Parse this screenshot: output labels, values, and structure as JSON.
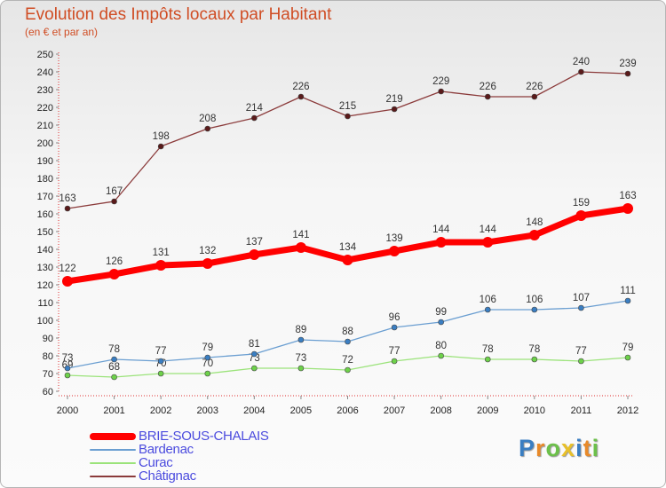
{
  "header": {
    "title": "Evolution des Impôts locaux par Habitant",
    "subtitle": "(en € et par an)"
  },
  "chart_data": {
    "type": "line",
    "x": [
      "2000",
      "2001",
      "2002",
      "2003",
      "2004",
      "2005",
      "2006",
      "2007",
      "2008",
      "2009",
      "2010",
      "2011",
      "2012"
    ],
    "ylim": [
      60,
      250
    ],
    "ytick_step": 10,
    "grid": false,
    "legend_position": "bottom-left",
    "series": [
      {
        "name": "BRIE-SOUS-CHALAIS",
        "color": "#ff0000",
        "point_color": "#ff0000",
        "width": 7,
        "radius": 6,
        "values": [
          122,
          126,
          131,
          132,
          137,
          141,
          134,
          139,
          144,
          144,
          148,
          159,
          163
        ]
      },
      {
        "name": "Bardenac",
        "color": "#6a9ed1",
        "point_color": "#3a7ec2",
        "width": 1.3,
        "radius": 3,
        "values": [
          73,
          78,
          77,
          79,
          81,
          89,
          88,
          96,
          99,
          106,
          106,
          107,
          111
        ]
      },
      {
        "name": "Curac",
        "color": "#9be37a",
        "point_color": "#6dd14a",
        "width": 1.3,
        "radius": 3,
        "values": [
          69,
          68,
          70,
          70,
          73,
          73,
          72,
          77,
          80,
          78,
          78,
          77,
          79
        ]
      },
      {
        "name": "Châtignac",
        "color": "#8b3b3b",
        "point_color": "#5a1a1a",
        "width": 1.3,
        "radius": 3,
        "values": [
          163,
          167,
          198,
          208,
          214,
          226,
          215,
          219,
          229,
          226,
          226,
          240,
          239
        ]
      }
    ]
  },
  "logo": {
    "letters": [
      "P",
      "r",
      "o",
      "x",
      "i",
      "t",
      "i"
    ],
    "colors": [
      "#3a7ec2",
      "#e88a2a",
      "#6cc04a",
      "#e8c02a",
      "#3a7ec2",
      "#e88a2a",
      "#6cc04a"
    ]
  }
}
